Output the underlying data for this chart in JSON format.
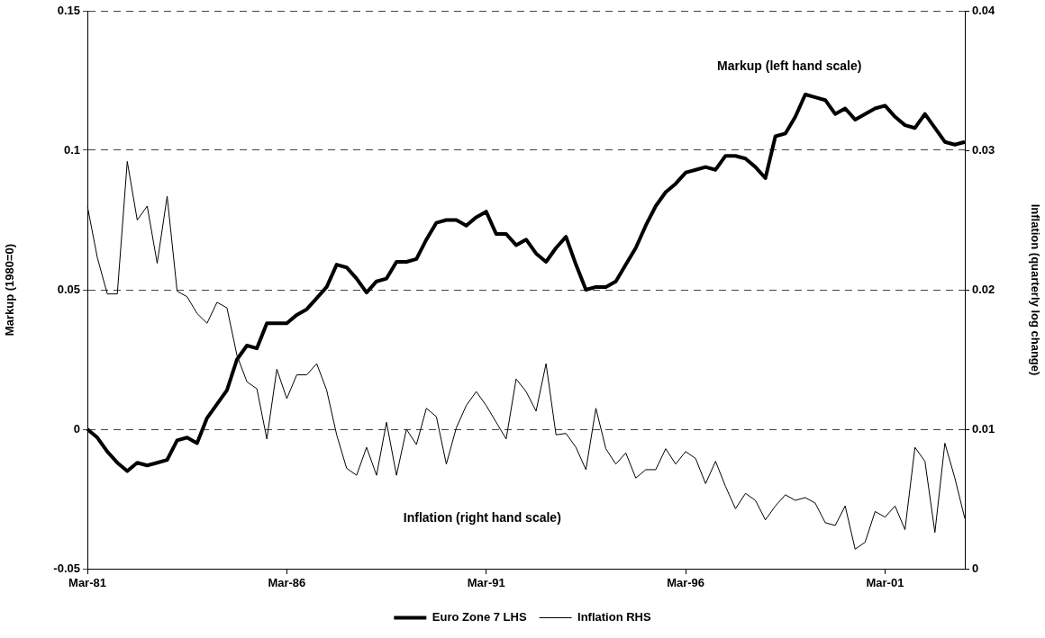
{
  "chart_data": {
    "type": "line",
    "categories": [
      "Mar-81",
      null,
      null,
      null,
      null,
      null,
      null,
      null,
      null,
      null,
      null,
      null,
      null,
      null,
      null,
      null,
      null,
      null,
      null,
      null,
      "Mar-86",
      null,
      null,
      null,
      null,
      null,
      null,
      null,
      null,
      null,
      null,
      null,
      null,
      null,
      null,
      null,
      null,
      null,
      null,
      null,
      "Mar-91",
      null,
      null,
      null,
      null,
      null,
      null,
      null,
      null,
      null,
      null,
      null,
      null,
      null,
      null,
      null,
      null,
      null,
      null,
      null,
      "Mar-96",
      null,
      null,
      null,
      null,
      null,
      null,
      null,
      null,
      null,
      null,
      null,
      null,
      null,
      null,
      null,
      null,
      null,
      null,
      null,
      "Mar-01",
      null,
      null,
      null,
      null,
      null,
      null,
      null,
      null
    ],
    "series": [
      {
        "name": "Euro Zone 7 LHS",
        "color": "#000000",
        "values": [
          0.0,
          -0.003,
          -0.008,
          -0.012,
          -0.015,
          -0.012,
          -0.013,
          -0.012,
          -0.011,
          -0.004,
          -0.003,
          -0.005,
          0.004,
          0.009,
          0.014,
          0.025,
          0.03,
          0.029,
          0.038,
          0.038,
          0.038,
          0.041,
          0.043,
          0.047,
          0.051,
          0.059,
          0.058,
          0.054,
          0.049,
          0.053,
          0.054,
          0.06,
          0.06,
          0.061,
          0.068,
          0.074,
          0.075,
          0.075,
          0.073,
          0.076,
          0.078,
          0.07,
          0.07,
          0.066,
          0.068,
          0.063,
          0.06,
          0.065,
          0.069,
          0.059,
          0.05,
          0.051,
          0.051,
          0.053,
          0.059,
          0.065,
          0.073,
          0.08,
          0.085,
          0.088,
          0.092,
          0.093,
          0.094,
          0.093,
          0.098,
          0.098,
          0.097,
          0.094,
          0.09,
          0.105,
          0.106,
          0.112,
          0.12,
          0.119,
          0.118,
          0.113,
          0.115,
          0.111,
          0.113,
          0.115,
          0.116,
          0.112,
          0.109,
          0.108,
          0.113,
          0.108,
          0.103,
          0.102,
          0.103
        ]
      },
      {
        "name": "Inflation RHS",
        "color": "#000000",
        "axis": "y2",
        "values": [
          0.026,
          0.0223,
          0.0197,
          0.0197,
          0.0292,
          0.025,
          0.026,
          0.0219,
          0.0267,
          0.0199,
          0.0195,
          0.0183,
          0.0176,
          0.0191,
          0.0187,
          0.0153,
          0.0134,
          0.0129,
          0.0093,
          0.0143,
          0.0122,
          0.0139,
          0.0139,
          0.0147,
          0.0128,
          0.0096,
          0.0072,
          0.0067,
          0.0087,
          0.0067,
          0.0105,
          0.0067,
          0.01,
          0.0089,
          0.0115,
          0.0109,
          0.0075,
          0.0101,
          0.0117,
          0.0127,
          0.0117,
          0.0105,
          0.0093,
          0.0136,
          0.0127,
          0.0113,
          0.0147,
          0.0096,
          0.0097,
          0.0087,
          0.0071,
          0.0115,
          0.0086,
          0.0075,
          0.0083,
          0.0065,
          0.0071,
          0.0071,
          0.0086,
          0.0075,
          0.0084,
          0.0079,
          0.0061,
          0.0077,
          0.0059,
          0.0043,
          0.0054,
          0.0049,
          0.0035,
          0.0045,
          0.0053,
          0.0049,
          0.0051,
          0.0047,
          0.0033,
          0.0031,
          0.0045,
          0.0014,
          0.0019,
          0.0041,
          0.0037,
          0.0045,
          0.0028,
          0.0087,
          0.0077,
          0.0026,
          0.009,
          0.0065,
          0.0036
        ]
      }
    ],
    "ylabel": "Markup (1980=0)",
    "y2label": "Inflation (quarterly log change)",
    "ylim": [
      -0.05,
      0.15
    ],
    "yticks": [
      -0.05,
      0,
      0.05,
      0.1,
      0.15
    ],
    "y2lim": [
      0,
      0.04
    ],
    "y2ticks": [
      0,
      0.01,
      0.02,
      0.03,
      0.04
    ],
    "grid": "y",
    "legend": "bottom",
    "annotations": [
      "Markup (left hand scale)",
      "Inflation (right hand scale)"
    ]
  }
}
